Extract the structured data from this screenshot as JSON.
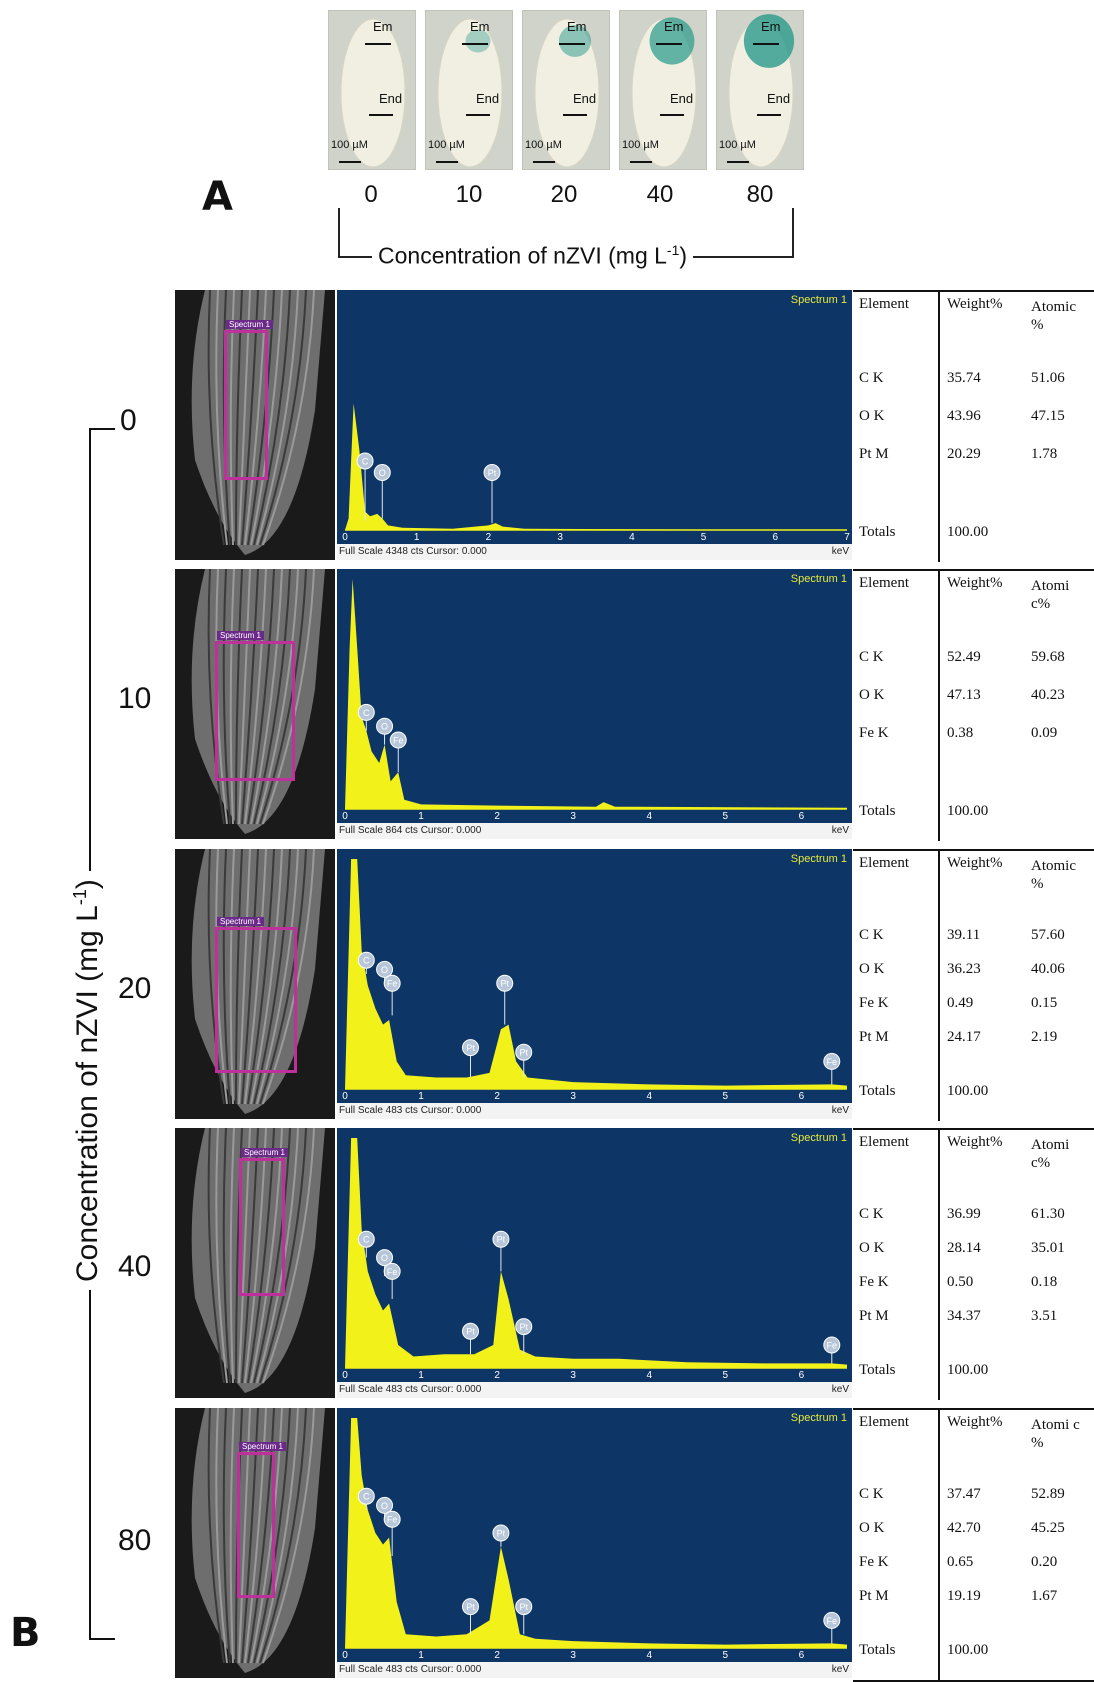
{
  "panel_a": {
    "label": "A",
    "axis_title": "Concentration  of  nZVI  (mg L",
    "axis_title_sup": "-1",
    "axis_title_end": ")",
    "labels": {
      "em": "Em",
      "end": "End",
      "scale": "100 µM"
    },
    "concentrations": [
      "0",
      "10",
      "20",
      "40",
      "80"
    ],
    "stain_levels": [
      0,
      0.25,
      0.45,
      0.8,
      0.95
    ]
  },
  "panel_b": {
    "label": "B",
    "axis_title": "Concentration  of  nZVI  (mg L",
    "axis_title_sup": "-1",
    "axis_title_end": ")",
    "spectrum_label": "Spectrum 1",
    "units": "keV",
    "table_headers": {
      "element": "Element",
      "weight": "Weight%"
    },
    "totals_label": "Totals",
    "rows": [
      {
        "concentration": "0",
        "atomic_header": "Atomic %",
        "full_scale": "Full Scale 4348 cts Cursor: 0.000",
        "x_ticks": [
          "0",
          "1",
          "2",
          "3",
          "4",
          "5",
          "6",
          "7"
        ],
        "x_max": 7,
        "elements": [
          {
            "name": "C K",
            "weight": "35.74",
            "atomic": "51.06"
          },
          {
            "name": "O K",
            "weight": "43.96",
            "atomic": "47.15"
          },
          {
            "name": "Pt M",
            "weight": "20.29",
            "atomic": "1.78"
          }
        ],
        "total": "100.00",
        "peaks": [
          {
            "label": "C",
            "kev": 0.28,
            "height": 0.04,
            "marker_h": 0.3
          },
          {
            "label": "O",
            "kev": 0.52,
            "height": 0.05,
            "marker_h": 0.25
          },
          {
            "label": "Pt",
            "kev": 2.05,
            "height": 0.03,
            "marker_h": 0.25
          }
        ],
        "spectrum": [
          [
            0,
            0.0
          ],
          [
            0.05,
            0.05
          ],
          [
            0.12,
            0.55
          ],
          [
            0.2,
            0.35
          ],
          [
            0.28,
            0.08
          ],
          [
            0.35,
            0.06
          ],
          [
            0.45,
            0.07
          ],
          [
            0.52,
            0.05
          ],
          [
            0.6,
            0.02
          ],
          [
            0.8,
            0.01
          ],
          [
            1.5,
            0.005
          ],
          [
            2.0,
            0.02
          ],
          [
            2.1,
            0.03
          ],
          [
            2.2,
            0.015
          ],
          [
            2.5,
            0.005
          ],
          [
            7,
            0.0
          ]
        ]
      },
      {
        "concentration": "10",
        "atomic_header": "Atomi c%",
        "full_scale": "Full Scale 864 cts Cursor: 0.000",
        "x_ticks": [
          "0",
          "1",
          "2",
          "3",
          "4",
          "5",
          "6"
        ],
        "x_max": 6.6,
        "elements": [
          {
            "name": "C K",
            "weight": "52.49",
            "atomic": "59.68"
          },
          {
            "name": "O K",
            "weight": "47.13",
            "atomic": "40.23"
          },
          {
            "name": "Fe K",
            "weight": "0.38",
            "atomic": "0.09"
          }
        ],
        "total": "100.00",
        "peaks": [
          {
            "label": "C",
            "kev": 0.28,
            "height": 0.34,
            "marker_h": 0.42
          },
          {
            "label": "O",
            "kev": 0.52,
            "height": 0.28,
            "marker_h": 0.36
          },
          {
            "label": "Fe",
            "kev": 0.7,
            "height": 0.16,
            "marker_h": 0.3
          }
        ],
        "spectrum": [
          [
            0,
            0
          ],
          [
            0.06,
            0.7
          ],
          [
            0.1,
            1.0
          ],
          [
            0.16,
            0.7
          ],
          [
            0.22,
            0.4
          ],
          [
            0.28,
            0.34
          ],
          [
            0.35,
            0.25
          ],
          [
            0.45,
            0.2
          ],
          [
            0.52,
            0.28
          ],
          [
            0.6,
            0.12
          ],
          [
            0.7,
            0.16
          ],
          [
            0.78,
            0.04
          ],
          [
            1.0,
            0.02
          ],
          [
            2.0,
            0.015
          ],
          [
            3.3,
            0.01
          ],
          [
            3.4,
            0.03
          ],
          [
            3.55,
            0.01
          ],
          [
            6.6,
            0.005
          ]
        ]
      },
      {
        "concentration": "20",
        "atomic_header": "Atomic %",
        "full_scale": "Full Scale 483 cts Cursor: 0.000",
        "x_ticks": [
          "0",
          "1",
          "2",
          "3",
          "4",
          "5",
          "6"
        ],
        "x_max": 6.6,
        "elements": [
          {
            "name": "C K",
            "weight": "39.11",
            "atomic": "57.60"
          },
          {
            "name": "O K",
            "weight": "36.23",
            "atomic": "40.06"
          },
          {
            "name": "Fe K",
            "weight": "0.49",
            "atomic": "0.15"
          },
          {
            "name": "Pt M",
            "weight": "24.17",
            "atomic": "2.19"
          }
        ],
        "total": "100.00",
        "peaks": [
          {
            "label": "C",
            "kev": 0.28,
            "height": 0.5,
            "marker_h": 0.56
          },
          {
            "label": "O",
            "kev": 0.52,
            "height": 0.45,
            "marker_h": 0.52
          },
          {
            "label": "Fe",
            "kev": 0.62,
            "height": 0.32,
            "marker_h": 0.46
          },
          {
            "label": "Pt",
            "kev": 1.65,
            "height": 0.05,
            "marker_h": 0.18
          },
          {
            "label": "Pt",
            "kev": 2.1,
            "height": 0.28,
            "marker_h": 0.46
          },
          {
            "label": "Pt",
            "kev": 2.35,
            "height": 0.05,
            "marker_h": 0.16
          },
          {
            "label": "Fe",
            "kev": 6.4,
            "height": 0.02,
            "marker_h": 0.12
          }
        ],
        "spectrum": [
          [
            0,
            0
          ],
          [
            0.08,
            1.0
          ],
          [
            0.16,
            1.0
          ],
          [
            0.22,
            0.6
          ],
          [
            0.3,
            0.45
          ],
          [
            0.4,
            0.35
          ],
          [
            0.5,
            0.28
          ],
          [
            0.58,
            0.3
          ],
          [
            0.68,
            0.12
          ],
          [
            0.8,
            0.06
          ],
          [
            1.2,
            0.05
          ],
          [
            1.6,
            0.05
          ],
          [
            1.9,
            0.07
          ],
          [
            2.05,
            0.26
          ],
          [
            2.15,
            0.28
          ],
          [
            2.25,
            0.12
          ],
          [
            2.4,
            0.05
          ],
          [
            3,
            0.03
          ],
          [
            4,
            0.02
          ],
          [
            5,
            0.015
          ],
          [
            6.4,
            0.02
          ],
          [
            6.6,
            0.015
          ]
        ]
      },
      {
        "concentration": "40",
        "atomic_header": "Atomi c%",
        "full_scale": "Full Scale 483 cts Cursor: 0.000",
        "x_ticks": [
          "0",
          "1",
          "2",
          "3",
          "4",
          "5",
          "6"
        ],
        "x_max": 6.6,
        "elements": [
          {
            "name": "C K",
            "weight": "36.99",
            "atomic": "61.30"
          },
          {
            "name": "O K",
            "weight": "28.14",
            "atomic": "35.01"
          },
          {
            "name": "Fe K",
            "weight": "0.50",
            "atomic": "0.18"
          },
          {
            "name": "Pt M",
            "weight": "34.37",
            "atomic": "3.51"
          }
        ],
        "total": "100.00",
        "peaks": [
          {
            "label": "C",
            "kev": 0.28,
            "height": 0.48,
            "marker_h": 0.56
          },
          {
            "label": "O",
            "kev": 0.52,
            "height": 0.4,
            "marker_h": 0.48
          },
          {
            "label": "Fe",
            "kev": 0.62,
            "height": 0.3,
            "marker_h": 0.42
          },
          {
            "label": "Pt",
            "kev": 1.65,
            "height": 0.06,
            "marker_h": 0.16
          },
          {
            "label": "Pt",
            "kev": 2.05,
            "height": 0.42,
            "marker_h": 0.56
          },
          {
            "label": "Pt",
            "kev": 2.35,
            "height": 0.06,
            "marker_h": 0.18
          },
          {
            "label": "Fe",
            "kev": 6.4,
            "height": 0.02,
            "marker_h": 0.1
          }
        ],
        "spectrum": [
          [
            0,
            0
          ],
          [
            0.08,
            1.0
          ],
          [
            0.16,
            1.0
          ],
          [
            0.22,
            0.6
          ],
          [
            0.3,
            0.42
          ],
          [
            0.4,
            0.32
          ],
          [
            0.5,
            0.25
          ],
          [
            0.58,
            0.28
          ],
          [
            0.7,
            0.1
          ],
          [
            0.9,
            0.05
          ],
          [
            1.3,
            0.06
          ],
          [
            1.7,
            0.06
          ],
          [
            1.95,
            0.1
          ],
          [
            2.05,
            0.42
          ],
          [
            2.15,
            0.3
          ],
          [
            2.3,
            0.08
          ],
          [
            2.5,
            0.05
          ],
          [
            3.0,
            0.04
          ],
          [
            3.6,
            0.04
          ],
          [
            4.5,
            0.025
          ],
          [
            5.5,
            0.02
          ],
          [
            6.4,
            0.02
          ],
          [
            6.6,
            0.015
          ]
        ]
      },
      {
        "concentration": "80",
        "atomic_header": "Atomi c %",
        "full_scale": "Full Scale 483 cts Cursor: 0.000",
        "x_ticks": [
          "0",
          "1",
          "2",
          "3",
          "4",
          "5",
          "6"
        ],
        "x_max": 6.6,
        "elements": [
          {
            "name": "C K",
            "weight": "37.47",
            "atomic": "52.89"
          },
          {
            "name": "O K",
            "weight": "42.70",
            "atomic": "45.25"
          },
          {
            "name": "Fe K",
            "weight": "0.65",
            "atomic": "0.20"
          },
          {
            "name": "Pt M",
            "weight": "19.19",
            "atomic": "1.67"
          }
        ],
        "total": "100.00",
        "peaks": [
          {
            "label": "C",
            "kev": 0.28,
            "height": 0.6,
            "marker_h": 0.66
          },
          {
            "label": "O",
            "kev": 0.52,
            "height": 0.55,
            "marker_h": 0.62
          },
          {
            "label": "Fe",
            "kev": 0.62,
            "height": 0.4,
            "marker_h": 0.56
          },
          {
            "label": "Pt",
            "kev": 1.65,
            "height": 0.06,
            "marker_h": 0.18
          },
          {
            "label": "Pt",
            "kev": 2.05,
            "height": 0.44,
            "marker_h": 0.5
          },
          {
            "label": "Pt",
            "kev": 2.35,
            "height": 0.06,
            "marker_h": 0.18
          },
          {
            "label": "Fe",
            "kev": 6.4,
            "height": 0.02,
            "marker_h": 0.12
          }
        ],
        "spectrum": [
          [
            0,
            0
          ],
          [
            0.08,
            1.0
          ],
          [
            0.16,
            1.0
          ],
          [
            0.22,
            0.75
          ],
          [
            0.3,
            0.6
          ],
          [
            0.4,
            0.5
          ],
          [
            0.5,
            0.45
          ],
          [
            0.58,
            0.48
          ],
          [
            0.68,
            0.2
          ],
          [
            0.8,
            0.06
          ],
          [
            1.2,
            0.05
          ],
          [
            1.6,
            0.06
          ],
          [
            1.9,
            0.12
          ],
          [
            2.05,
            0.44
          ],
          [
            2.15,
            0.3
          ],
          [
            2.3,
            0.06
          ],
          [
            2.5,
            0.04
          ],
          [
            3.0,
            0.03
          ],
          [
            4.0,
            0.02
          ],
          [
            5.0,
            0.015
          ],
          [
            6.4,
            0.02
          ],
          [
            6.6,
            0.015
          ]
        ]
      }
    ]
  },
  "colors": {
    "spectrum_bg": "#0d3566",
    "spectrum_fill": "#f2f21a",
    "roi": "#c0309c",
    "stain": "#2e9c8e"
  }
}
